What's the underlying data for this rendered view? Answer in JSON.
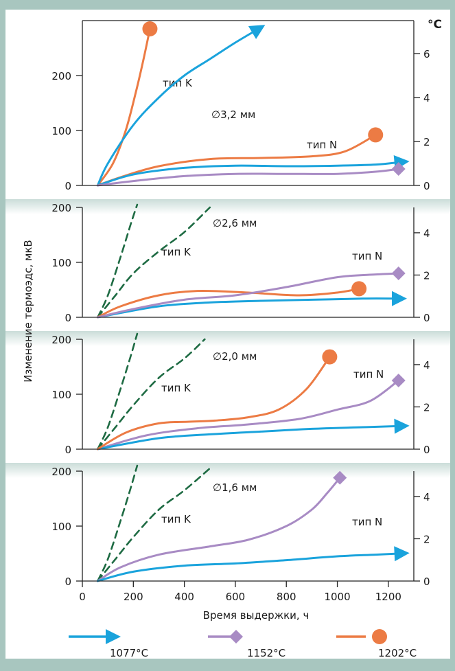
{
  "chart_data": {
    "type": "line",
    "ylabel": "Изменение термоэдс, мкВ",
    "xlabel": "Время выдержки, ч",
    "right_unit": "°C",
    "x_ticks": [
      0,
      200,
      400,
      600,
      800,
      1000,
      1200
    ],
    "xlim": [
      0,
      1300
    ],
    "legend_placement": "bottom",
    "grid": false,
    "legend": [
      {
        "name": "1077°C",
        "color": "#1aa3dc",
        "marker": "arrow"
      },
      {
        "name": "1152°C",
        "color": "#a88bc4",
        "marker": "diamond"
      },
      {
        "name": "1202°C",
        "color": "#ec7b44",
        "marker": "circle"
      }
    ],
    "panels": [
      {
        "diameter_label": "∅3,2 мм",
        "label_k": "тип K",
        "label_n": "тип N",
        "ylim": [
          0,
          300
        ],
        "y_ticks": [
          0,
          100,
          200
        ],
        "right_ylim": [
          0,
          7.5
        ],
        "right_ticks": [
          0,
          2,
          4,
          6
        ],
        "series": [
          {
            "color": "#ec7b44",
            "marker": "circle",
            "points": [
              [
                60,
                0
              ],
              [
                120,
                40
              ],
              [
                170,
                100
              ],
              [
                210,
                170
              ],
              [
                240,
                230
              ],
              [
                265,
                285
              ]
            ]
          },
          {
            "color": "#1aa3dc",
            "marker": "arrow",
            "points": [
              [
                60,
                0
              ],
              [
                100,
                40
              ],
              [
                200,
                110
              ],
              [
                300,
                160
              ],
              [
                400,
                200
              ],
              [
                500,
                230
              ],
              [
                600,
                260
              ],
              [
                680,
                282
              ]
            ]
          },
          {
            "color": "#ec7b44",
            "marker": "circle",
            "points": [
              [
                60,
                0
              ],
              [
                150,
                15
              ],
              [
                300,
                35
              ],
              [
                500,
                48
              ],
              [
                700,
                50
              ],
              [
                900,
                53
              ],
              [
                1030,
                62
              ],
              [
                1150,
                92
              ]
            ]
          },
          {
            "color": "#1aa3dc",
            "marker": "arrow",
            "points": [
              [
                60,
                0
              ],
              [
                200,
                20
              ],
              [
                400,
                32
              ],
              [
                600,
                36
              ],
              [
                800,
                35
              ],
              [
                1000,
                36
              ],
              [
                1150,
                38
              ],
              [
                1240,
                42
              ]
            ]
          },
          {
            "color": "#a88bc4",
            "marker": "diamond",
            "points": [
              [
                60,
                0
              ],
              [
                200,
                8
              ],
              [
                400,
                17
              ],
              [
                600,
                21
              ],
              [
                800,
                21
              ],
              [
                1000,
                21
              ],
              [
                1150,
                25
              ],
              [
                1240,
                30
              ]
            ]
          }
        ]
      },
      {
        "diameter_label": "∅2,6 мм",
        "label_k": "тип K",
        "label_n": "тип N",
        "ylim": [
          0,
          200
        ],
        "y_ticks": [
          0,
          100,
          200
        ],
        "right_ylim": [
          0,
          5.2
        ],
        "right_ticks": [
          0,
          2,
          4
        ],
        "series": [
          {
            "color": "#1e6b43",
            "dashed": true,
            "points": [
              [
                60,
                0
              ],
              [
                100,
                40
              ],
              [
                150,
                110
              ],
              [
                190,
                170
              ],
              [
                215,
                205
              ]
            ]
          },
          {
            "color": "#1e6b43",
            "dashed": true,
            "points": [
              [
                60,
                0
              ],
              [
                130,
                40
              ],
              [
                200,
                80
              ],
              [
                300,
                120
              ],
              [
                400,
                155
              ],
              [
                500,
                200
              ]
            ]
          },
          {
            "color": "#1aa3dc",
            "marker": "arrow",
            "points": [
              [
                60,
                0
              ],
              [
                300,
                20
              ],
              [
                500,
                27
              ],
              [
                700,
                30
              ],
              [
                900,
                32
              ],
              [
                1100,
                34
              ],
              [
                1230,
                34
              ]
            ]
          },
          {
            "color": "#ec7b44",
            "marker": "circle",
            "points": [
              [
                60,
                0
              ],
              [
                150,
                20
              ],
              [
                300,
                40
              ],
              [
                450,
                48
              ],
              [
                650,
                45
              ],
              [
                850,
                40
              ],
              [
                1000,
                45
              ],
              [
                1085,
                52
              ]
            ]
          },
          {
            "color": "#a88bc4",
            "marker": "diamond",
            "points": [
              [
                60,
                0
              ],
              [
                200,
                15
              ],
              [
                400,
                32
              ],
              [
                600,
                40
              ],
              [
                800,
                55
              ],
              [
                1000,
                73
              ],
              [
                1150,
                78
              ],
              [
                1240,
                80
              ]
            ]
          }
        ]
      },
      {
        "diameter_label": "∅2,0 мм",
        "label_k": "тип K",
        "label_n": "тип N",
        "ylim": [
          0,
          200
        ],
        "y_ticks": [
          0,
          100,
          200
        ],
        "right_ylim": [
          0,
          5.2
        ],
        "right_ticks": [
          0,
          2,
          4
        ],
        "series": [
          {
            "color": "#1e6b43",
            "dashed": true,
            "points": [
              [
                60,
                0
              ],
              [
                100,
                40
              ],
              [
                150,
                110
              ],
              [
                190,
                170
              ],
              [
                215,
                210
              ]
            ]
          },
          {
            "color": "#1e6b43",
            "dashed": true,
            "points": [
              [
                60,
                0
              ],
              [
                130,
                40
              ],
              [
                200,
                80
              ],
              [
                300,
                130
              ],
              [
                400,
                165
              ],
              [
                480,
                200
              ]
            ]
          },
          {
            "color": "#a88bc4",
            "marker": "diamond",
            "points": [
              [
                60,
                0
              ],
              [
                250,
                25
              ],
              [
                450,
                38
              ],
              [
                650,
                45
              ],
              [
                850,
                55
              ],
              [
                1000,
                72
              ],
              [
                1130,
                88
              ],
              [
                1240,
                125
              ]
            ]
          },
          {
            "color": "#1aa3dc",
            "marker": "arrow",
            "points": [
              [
                60,
                0
              ],
              [
                300,
                20
              ],
              [
                500,
                27
              ],
              [
                700,
                32
              ],
              [
                900,
                37
              ],
              [
                1100,
                40
              ],
              [
                1240,
                42
              ]
            ]
          },
          {
            "color": "#ec7b44",
            "marker": "circle",
            "points": [
              [
                60,
                0
              ],
              [
                170,
                30
              ],
              [
                300,
                47
              ],
              [
                420,
                50
              ],
              [
                520,
                52
              ],
              [
                650,
                58
              ],
              [
                770,
                72
              ],
              [
                880,
                110
              ],
              [
                970,
                168
              ]
            ]
          }
        ]
      },
      {
        "diameter_label": "∅1,6 мм",
        "label_k": "тип K",
        "label_n": "тип N",
        "ylim": [
          0,
          200
        ],
        "y_ticks": [
          0,
          100,
          200
        ],
        "right_ylim": [
          0,
          5.2
        ],
        "right_ticks": [
          0,
          2,
          4
        ],
        "series": [
          {
            "color": "#1e6b43",
            "dashed": true,
            "points": [
              [
                60,
                0
              ],
              [
                100,
                40
              ],
              [
                150,
                110
              ],
              [
                190,
                170
              ],
              [
                215,
                210
              ]
            ]
          },
          {
            "color": "#1e6b43",
            "dashed": true,
            "points": [
              [
                60,
                0
              ],
              [
                130,
                40
              ],
              [
                200,
                80
              ],
              [
                300,
                130
              ],
              [
                400,
                165
              ],
              [
                500,
                205
              ]
            ]
          },
          {
            "color": "#a88bc4",
            "marker": "diamond",
            "points": [
              [
                60,
                0
              ],
              [
                150,
                25
              ],
              [
                300,
                48
              ],
              [
                500,
                63
              ],
              [
                650,
                75
              ],
              [
                800,
                100
              ],
              [
                900,
                130
              ],
              [
                960,
                160
              ],
              [
                1010,
                188
              ]
            ]
          },
          {
            "color": "#1aa3dc",
            "marker": "arrow",
            "points": [
              [
                60,
                0
              ],
              [
                200,
                17
              ],
              [
                400,
                28
              ],
              [
                600,
                32
              ],
              [
                800,
                38
              ],
              [
                1000,
                45
              ],
              [
                1150,
                48
              ],
              [
                1240,
                50
              ]
            ]
          }
        ]
      }
    ]
  }
}
